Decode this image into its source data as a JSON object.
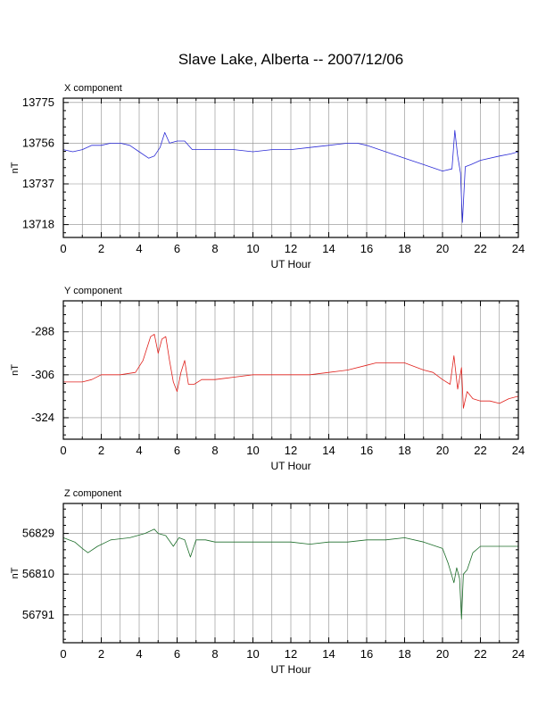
{
  "title": "Slave Lake, Alberta -- 2007/12/06",
  "colors": {
    "x": "#2b2bd6",
    "y": "#e0211c",
    "z": "#1d6e2a",
    "grid": "#8c8c8c"
  },
  "chart_data": [
    {
      "type": "line",
      "panel_label": "X component",
      "xlabel": "UT Hour",
      "ylabel": "nT",
      "xlim": [
        0,
        24
      ],
      "ylim": [
        13712,
        13777
      ],
      "xticks": [
        0,
        2,
        4,
        6,
        8,
        10,
        12,
        14,
        16,
        18,
        20,
        22,
        24
      ],
      "yticks": [
        13775,
        13756,
        13737,
        13718
      ],
      "grid": true,
      "series": [
        {
          "color": "#2b2bd6",
          "x": [
            0,
            0.5,
            1,
            1.5,
            2,
            2.5,
            3,
            3.5,
            4,
            4.5,
            4.8,
            5.1,
            5.35,
            5.6,
            6,
            6.4,
            6.8,
            7.2,
            8,
            9,
            10,
            11,
            12,
            13,
            14,
            15,
            15.5,
            16,
            17,
            18,
            19,
            20,
            20.5,
            20.65,
            20.8,
            20.95,
            21.05,
            21.2,
            21.5,
            22,
            23,
            23.6,
            24
          ],
          "y": [
            13753,
            13752,
            13753,
            13755,
            13755,
            13756,
            13756,
            13755,
            13752,
            13749,
            13750,
            13754,
            13761,
            13756,
            13757,
            13757,
            13753,
            13753,
            13753,
            13753,
            13752,
            13753,
            13753,
            13754,
            13755,
            13756,
            13756,
            13755,
            13752,
            13749,
            13746,
            13743,
            13744,
            13762,
            13750,
            13742,
            13719,
            13745,
            13746,
            13748,
            13750,
            13751,
            13752
          ]
        }
      ]
    },
    {
      "type": "line",
      "panel_label": "Y component",
      "xlabel": "UT Hour",
      "ylabel": "nT",
      "xlim": [
        0,
        24
      ],
      "ylim": [
        -333,
        -275
      ],
      "xticks": [
        0,
        2,
        4,
        6,
        8,
        10,
        12,
        14,
        16,
        18,
        20,
        22,
        24
      ],
      "yticks": [
        -288,
        -306,
        -324
      ],
      "grid": true,
      "series": [
        {
          "color": "#e0211c",
          "x": [
            0,
            0.5,
            1,
            1.5,
            2,
            3,
            3.8,
            4.2,
            4.6,
            4.8,
            5.0,
            5.2,
            5.4,
            5.6,
            5.8,
            6.0,
            6.2,
            6.4,
            6.6,
            6.9,
            7.3,
            8,
            9,
            10,
            11,
            12,
            13,
            14,
            15,
            16,
            16.5,
            17,
            18,
            19,
            19.5,
            20,
            20.4,
            20.6,
            20.8,
            21.0,
            21.1,
            21.3,
            21.6,
            22,
            22.5,
            23,
            23.5,
            24
          ],
          "y": [
            -309,
            -309,
            -309,
            -308,
            -306,
            -306,
            -305,
            -300,
            -290,
            -289,
            -297,
            -291,
            -290,
            -300,
            -309,
            -313,
            -305,
            -300,
            -310,
            -310,
            -308,
            -308,
            -307,
            -306,
            -306,
            -306,
            -306,
            -305,
            -304,
            -302,
            -301,
            -301,
            -301,
            -304,
            -305,
            -308,
            -310,
            -298,
            -312,
            -303,
            -320,
            -313,
            -316,
            -317,
            -317,
            -318,
            -316,
            -315
          ]
        }
      ]
    },
    {
      "type": "line",
      "panel_label": "Z component",
      "xlabel": "UT Hour",
      "ylabel": "nT",
      "xlim": [
        0,
        24
      ],
      "ylim": [
        56778,
        56843
      ],
      "xticks": [
        0,
        2,
        4,
        6,
        8,
        10,
        12,
        14,
        16,
        18,
        20,
        22,
        24
      ],
      "yticks": [
        56829,
        56810,
        56791
      ],
      "grid": true,
      "series": [
        {
          "color": "#1d6e2a",
          "x": [
            0,
            0.6,
            1.0,
            1.3,
            1.8,
            2.5,
            3.5,
            4.3,
            4.8,
            5.0,
            5.4,
            5.8,
            6.1,
            6.4,
            6.7,
            7.0,
            7.5,
            8,
            9,
            10,
            11,
            12,
            13,
            14,
            15,
            16,
            17,
            18,
            19,
            20,
            20.3,
            20.6,
            20.75,
            20.9,
            21.0,
            21.1,
            21.3,
            21.6,
            22,
            23,
            24
          ],
          "y": [
            56827,
            56825,
            56822,
            56820,
            56823,
            56826,
            56827,
            56829,
            56831,
            56829,
            56828,
            56823,
            56827,
            56826,
            56818,
            56826,
            56826,
            56825,
            56825,
            56825,
            56825,
            56825,
            56824,
            56825,
            56825,
            56826,
            56826,
            56827,
            56825,
            56822,
            56815,
            56806,
            56813,
            56808,
            56789,
            56810,
            56812,
            56820,
            56823,
            56823,
            56823
          ]
        }
      ]
    }
  ]
}
